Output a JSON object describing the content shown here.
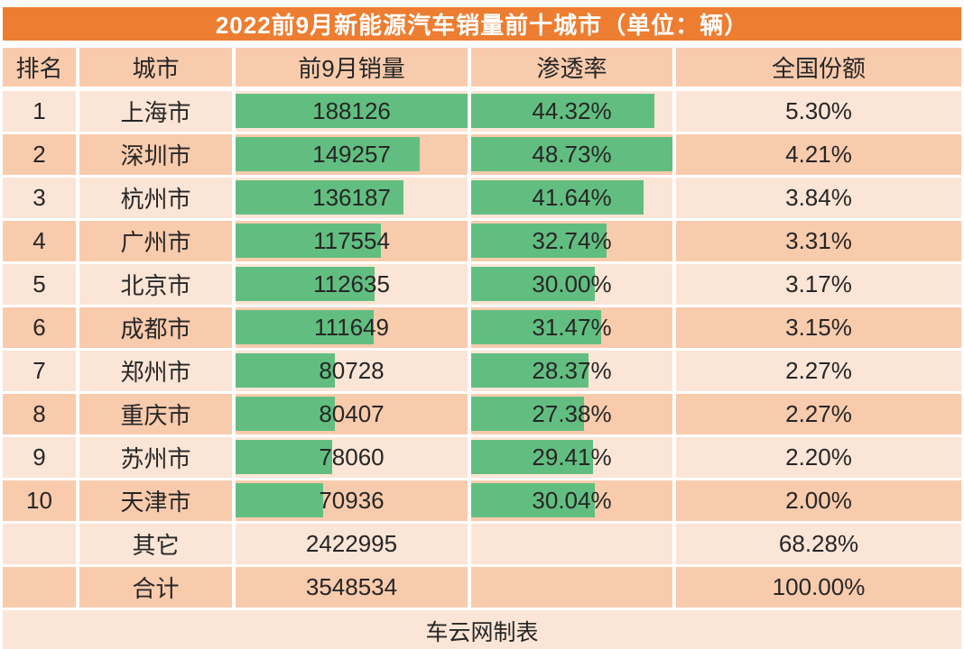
{
  "title": "2022前9月新能源汽车销量前十城市（单位：辆）",
  "footer": "车云网制表",
  "colors": {
    "title_bg": "#ED7D31",
    "title_text": "#FFFFFF",
    "header_bg": "#F8CBAD",
    "row_odd_bg": "#FBE5D6",
    "row_even_bg": "#F8CBAD",
    "bar_green": "#62BE80",
    "text_dark": "#262626"
  },
  "table": {
    "headers": [
      "排名",
      "城市",
      "前9月销量",
      "渗透率",
      "全国份额"
    ],
    "rows": [
      {
        "rank": "1",
        "city": "上海市",
        "sales": "188126",
        "penetration": "44.32%",
        "share": "5.30%",
        "bars": true
      },
      {
        "rank": "2",
        "city": "深圳市",
        "sales": "149257",
        "penetration": "48.73%",
        "share": "4.21%",
        "bars": true
      },
      {
        "rank": "3",
        "city": "杭州市",
        "sales": "136187",
        "penetration": "41.64%",
        "share": "3.84%",
        "bars": true
      },
      {
        "rank": "4",
        "city": "广州市",
        "sales": "117554",
        "penetration": "32.74%",
        "share": "3.31%",
        "bars": true
      },
      {
        "rank": "5",
        "city": "北京市",
        "sales": "112635",
        "penetration": "30.00%",
        "share": "3.17%",
        "bars": true
      },
      {
        "rank": "6",
        "city": "成都市",
        "sales": "111649",
        "penetration": "31.47%",
        "share": "3.15%",
        "bars": true
      },
      {
        "rank": "7",
        "city": "郑州市",
        "sales": "80728",
        "penetration": "28.37%",
        "share": "2.27%",
        "bars": true
      },
      {
        "rank": "8",
        "city": "重庆市",
        "sales": "80407",
        "penetration": "27.38%",
        "share": "2.27%",
        "bars": true
      },
      {
        "rank": "9",
        "city": "苏州市",
        "sales": "78060",
        "penetration": "29.41%",
        "share": "2.20%",
        "bars": true
      },
      {
        "rank": "10",
        "city": "天津市",
        "sales": "70936",
        "penetration": "30.04%",
        "share": "2.00%",
        "bars": true
      },
      {
        "rank": "",
        "city": "其它",
        "sales": "2422995",
        "penetration": "",
        "share": "68.28%",
        "bars": false
      },
      {
        "rank": "",
        "city": "合计",
        "sales": "3548534",
        "penetration": "",
        "share": "100.00%",
        "bars": false
      }
    ]
  },
  "chart_data": {
    "type": "table",
    "title": "2022前9月新能源汽车销量前十城市（单位：辆）",
    "columns": [
      "排名",
      "城市",
      "前9月销量",
      "渗透率",
      "全国份额"
    ],
    "bar_style": "green in-cell data bars, width proportional to value",
    "bar_max": {
      "sales": 188126,
      "penetration_pct": 48.73
    },
    "rows": [
      {
        "rank": 1,
        "city": "上海市",
        "sales": 188126,
        "penetration_pct": 44.32,
        "share_pct": 5.3
      },
      {
        "rank": 2,
        "city": "深圳市",
        "sales": 149257,
        "penetration_pct": 48.73,
        "share_pct": 4.21
      },
      {
        "rank": 3,
        "city": "杭州市",
        "sales": 136187,
        "penetration_pct": 41.64,
        "share_pct": 3.84
      },
      {
        "rank": 4,
        "city": "广州市",
        "sales": 117554,
        "penetration_pct": 32.74,
        "share_pct": 3.31
      },
      {
        "rank": 5,
        "city": "北京市",
        "sales": 112635,
        "penetration_pct": 30.0,
        "share_pct": 3.17
      },
      {
        "rank": 6,
        "city": "成都市",
        "sales": 111649,
        "penetration_pct": 31.47,
        "share_pct": 3.15
      },
      {
        "rank": 7,
        "city": "郑州市",
        "sales": 80728,
        "penetration_pct": 28.37,
        "share_pct": 2.27
      },
      {
        "rank": 8,
        "city": "重庆市",
        "sales": 80407,
        "penetration_pct": 27.38,
        "share_pct": 2.27
      },
      {
        "rank": 9,
        "city": "苏州市",
        "sales": 78060,
        "penetration_pct": 29.41,
        "share_pct": 2.2
      },
      {
        "rank": 10,
        "city": "天津市",
        "sales": 70936,
        "penetration_pct": 30.04,
        "share_pct": 2.0
      },
      {
        "rank": null,
        "city": "其它",
        "sales": 2422995,
        "penetration_pct": null,
        "share_pct": 68.28
      },
      {
        "rank": null,
        "city": "合计",
        "sales": 3548534,
        "penetration_pct": null,
        "share_pct": 100.0
      }
    ],
    "source_note": "车云网制表"
  }
}
